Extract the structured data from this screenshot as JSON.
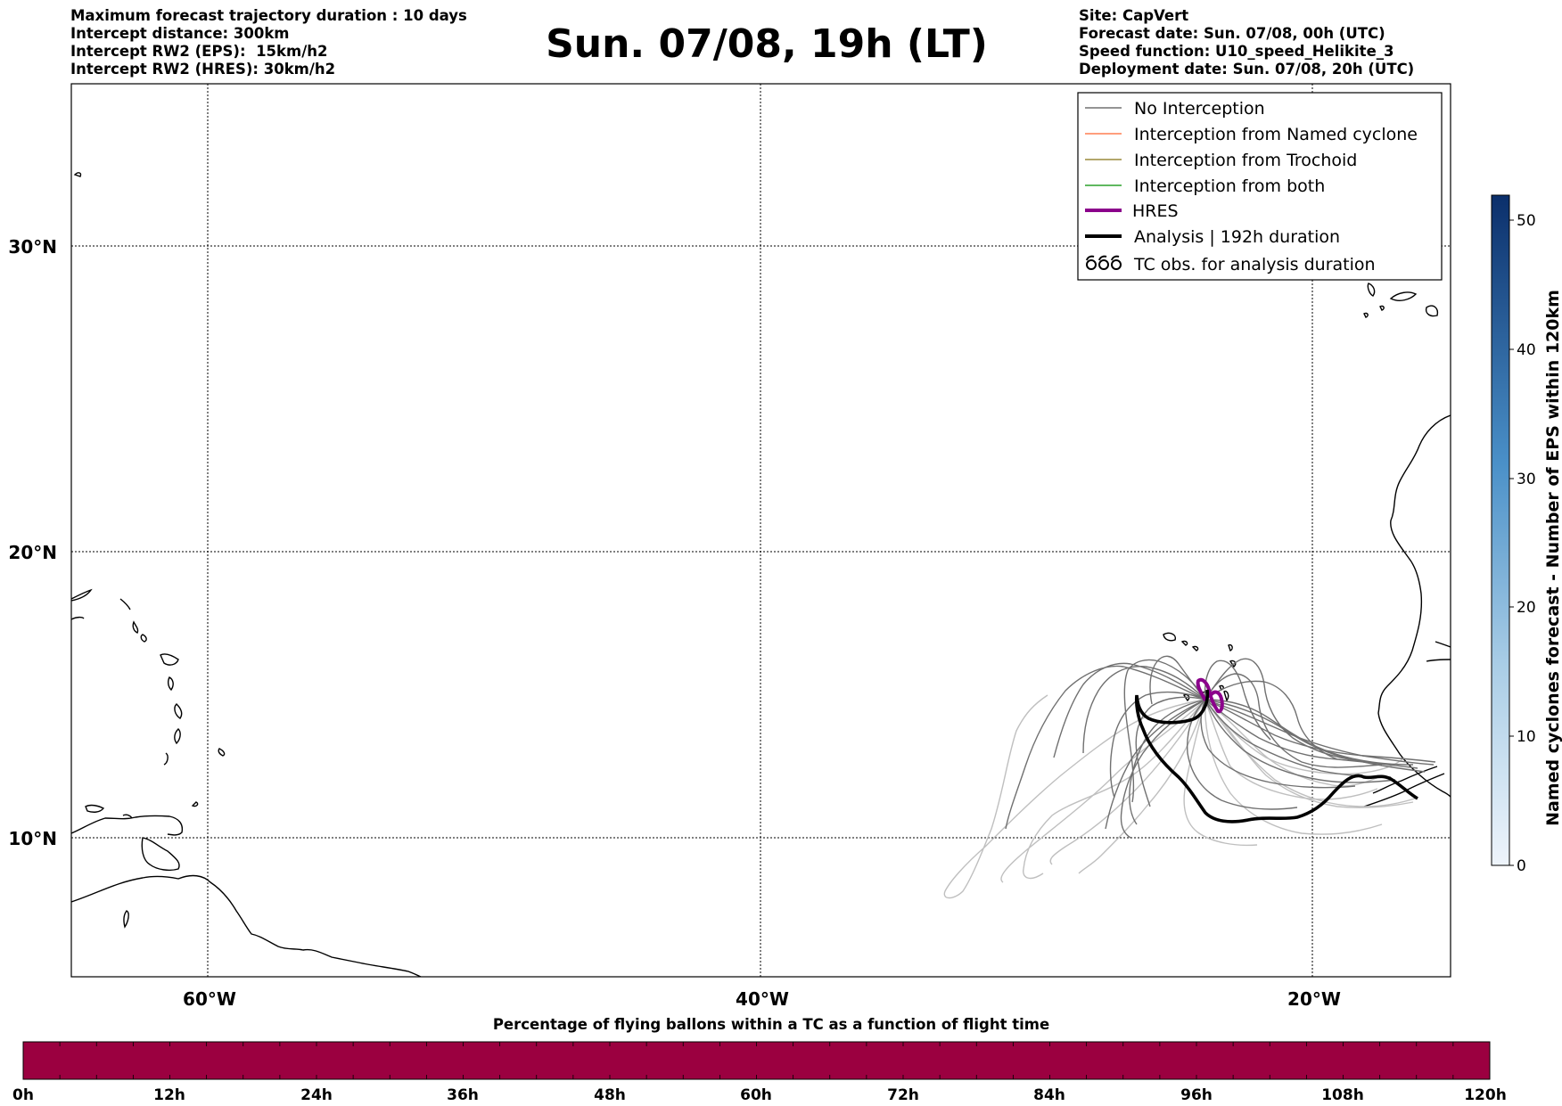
{
  "header": {
    "left": [
      "Maximum forecast trajectory duration : 10 days",
      "Intercept distance: 300km",
      "Intercept RW2 (EPS):  15km/h2",
      "Intercept RW2 (HRES): 30km/h2"
    ],
    "title": "Sun. 07/08, 19h (LT)",
    "right": [
      "Site: CapVert",
      "Forecast date: Sun. 07/08, 00h (UTC)",
      "Speed function: U10_speed_Helikite_3",
      "Deployment date: Sun. 07/08, 20h (UTC)"
    ]
  },
  "map": {
    "lat_labels": [
      "30°N",
      "20°N",
      "10°N"
    ],
    "lon_labels": [
      "60°W",
      "40°W",
      "20°W"
    ],
    "gridlines_lat": [
      30,
      20,
      10
    ],
    "gridlines_lon": [
      -60,
      -40,
      -20
    ],
    "extent": {
      "lon": [
        -65,
        -15
      ],
      "lat": [
        5.4,
        35.3
      ]
    }
  },
  "legend": {
    "items": [
      {
        "label": "No Interception",
        "color": "#707070",
        "style": "thin"
      },
      {
        "label": "Interception from Named cyclone",
        "color": "#ff7f50",
        "style": "thin"
      },
      {
        "label": "Interception from Trochoid",
        "color": "#9a8a3a",
        "style": "thin"
      },
      {
        "label": "Interception from both",
        "color": "#2ca02c",
        "style": "thin"
      },
      {
        "label": "HRES",
        "color": "#8b008b",
        "style": "thick"
      },
      {
        "label": "Analysis | 192h duration",
        "color": "#000000",
        "style": "thick"
      },
      {
        "label": "TC obs. for analysis duration",
        "color": "#000000",
        "style": "tc"
      }
    ]
  },
  "colorbar_right": {
    "label": "Named cyclones forecast - Number of EPS within 120km",
    "ticks": [
      "0",
      "10",
      "20",
      "30",
      "40",
      "50"
    ],
    "min": 0,
    "max": 52,
    "color_low": "#e6eef8",
    "color_high": "#0b2f6b"
  },
  "colorbar_bottom": {
    "label": "Percentage of flying ballons within a TC as a function of flight time",
    "ticks": [
      "0h",
      "12h",
      "24h",
      "36h",
      "48h",
      "60h",
      "72h",
      "84h",
      "96h",
      "108h",
      "120h"
    ],
    "fill_color": "#9b0040"
  }
}
